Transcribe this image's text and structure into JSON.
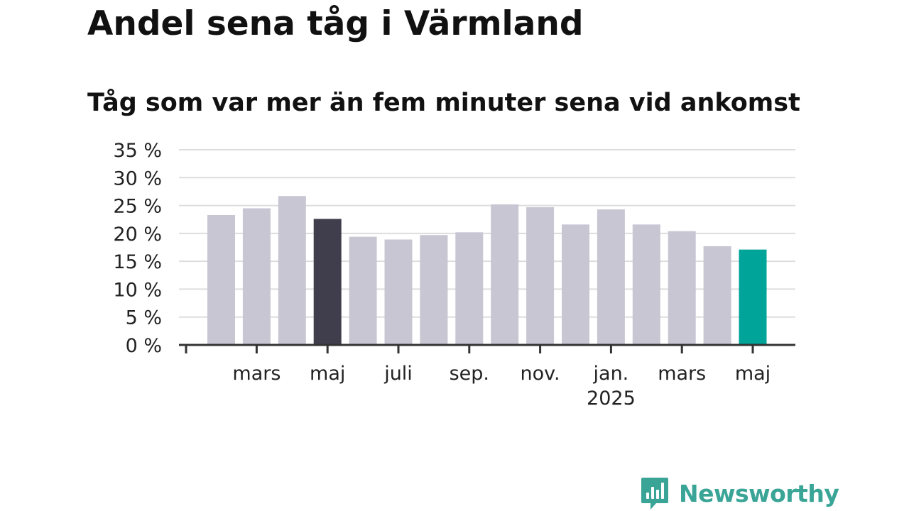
{
  "title": "Andel sena tåg i Värmland",
  "subtitle": "Tåg som var mer än fem minuter sena vid ankomst",
  "brand": {
    "name": "Newsworthy",
    "color": "#3aa597"
  },
  "colors": {
    "default_bar": "#c8c6d2",
    "highlight_previous_year": "#403e4c",
    "highlight_latest": "#00a499",
    "grid": "#dddddd",
    "axis": "#333333",
    "text": "#222222"
  },
  "chart_data": {
    "type": "bar",
    "categories": [
      "2024-02",
      "2024-03",
      "2024-04",
      "2024-05",
      "2024-06",
      "2024-07",
      "2024-08",
      "2024-09",
      "2024-10",
      "2024-11",
      "2024-12",
      "2025-01",
      "2025-02",
      "2025-03",
      "2025-04",
      "2025-05"
    ],
    "values": [
      23.3,
      24.5,
      26.7,
      22.6,
      19.4,
      18.9,
      19.7,
      20.2,
      25.2,
      24.7,
      21.6,
      24.3,
      21.6,
      20.4,
      17.7,
      17.1
    ],
    "highlights": {
      "2024-05": "previous_year",
      "2025-05": "latest"
    },
    "ylim": [
      0,
      35
    ],
    "yticks": [
      0,
      5,
      10,
      15,
      20,
      25,
      30,
      35
    ],
    "ytick_labels": [
      "0 %",
      "5 %",
      "10 %",
      "15 %",
      "20 %",
      "25 %",
      "30 %",
      "35 %"
    ],
    "xtick_labels": [
      {
        "category": "2024-03",
        "label": "mars"
      },
      {
        "category": "2024-05",
        "label": "maj"
      },
      {
        "category": "2024-07",
        "label": "juli"
      },
      {
        "category": "2024-09",
        "label": "sep."
      },
      {
        "category": "2024-11",
        "label": "nov."
      },
      {
        "category": "2025-01",
        "label": "jan.",
        "sublabel": "2025"
      },
      {
        "category": "2025-03",
        "label": "mars"
      },
      {
        "category": "2025-05",
        "label": "maj"
      }
    ],
    "grid": true,
    "xlabel": "",
    "ylabel": ""
  }
}
